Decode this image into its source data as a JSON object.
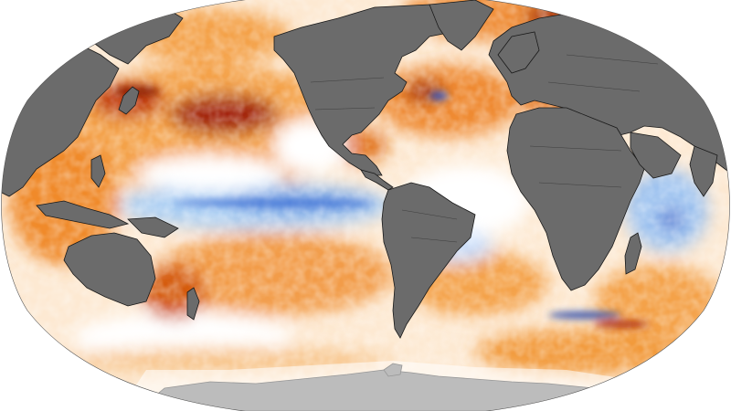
{
  "map": {
    "projection": "winkel-tripel-like",
    "colors": {
      "background": "#ffffff",
      "ocean_neutral": "#ffffff",
      "land": "#6b6b6b",
      "coast_outline": "#1a1a1a",
      "warm_light": "#fbd7a6",
      "warm_mid": "#f4a24a",
      "warm_strong": "#e06a10",
      "warm_extreme": "#8a1a05",
      "cool_light": "#cfe3fb",
      "cool_mid": "#8fbcef",
      "cool_strong": "#2a55c8",
      "sea_ice": "#ffffff"
    },
    "anomaly_regions": [
      {
        "name": "north-pacific-warm",
        "sign": "warm",
        "intensity": "extreme"
      },
      {
        "name": "northwest-pacific-warm",
        "sign": "warm",
        "intensity": "strong"
      },
      {
        "name": "gulf-of-mexico-warm",
        "sign": "warm",
        "intensity": "strong"
      },
      {
        "name": "north-atlantic-warm",
        "sign": "warm",
        "intensity": "strong"
      },
      {
        "name": "mediterranean-warm",
        "sign": "warm",
        "intensity": "strong"
      },
      {
        "name": "equatorial-pacific-cool",
        "sign": "cool",
        "intensity": "mid"
      },
      {
        "name": "south-indian-ocean-cool",
        "sign": "cool",
        "intensity": "mid"
      },
      {
        "name": "tasman-sea-warm",
        "sign": "warm",
        "intensity": "extreme"
      },
      {
        "name": "south-pacific-warm",
        "sign": "warm",
        "intensity": "mid"
      },
      {
        "name": "south-atlantic-warm",
        "sign": "warm",
        "intensity": "mid"
      },
      {
        "name": "southern-ocean-mixed",
        "sign": "mixed",
        "intensity": "strong"
      },
      {
        "name": "western-indian-ocean-cool",
        "sign": "cool",
        "intensity": "strong"
      }
    ]
  }
}
